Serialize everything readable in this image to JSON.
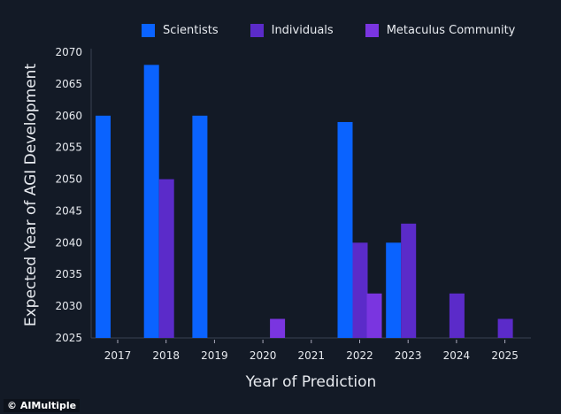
{
  "chart_data": {
    "type": "bar",
    "title": "",
    "xlabel": "Year of Prediction",
    "ylabel": "Expected Year of AGI Development",
    "categories": [
      "2017",
      "2018",
      "2019",
      "2020",
      "2021",
      "2022",
      "2023",
      "2024",
      "2025"
    ],
    "ylim": [
      2025,
      2070
    ],
    "yticks": [
      2025,
      2030,
      2035,
      2040,
      2045,
      2050,
      2055,
      2060,
      2065,
      2070
    ],
    "grid": false,
    "legend_position": "top",
    "series": [
      {
        "name": "Scientists",
        "color": "#0a63ff",
        "values": [
          2060,
          2068,
          2060,
          null,
          null,
          2059,
          2040,
          null,
          null
        ]
      },
      {
        "name": "Individuals",
        "color": "#5b2bc9",
        "values": [
          null,
          2050,
          null,
          null,
          null,
          2040,
          2043,
          2032,
          2028
        ]
      },
      {
        "name": "Metaculus Community",
        "color": "#7a35e0",
        "values": [
          null,
          null,
          null,
          2028,
          null,
          2032,
          null,
          null,
          null
        ]
      }
    ]
  },
  "watermark": "© AIMultiple",
  "background": "#131a26"
}
